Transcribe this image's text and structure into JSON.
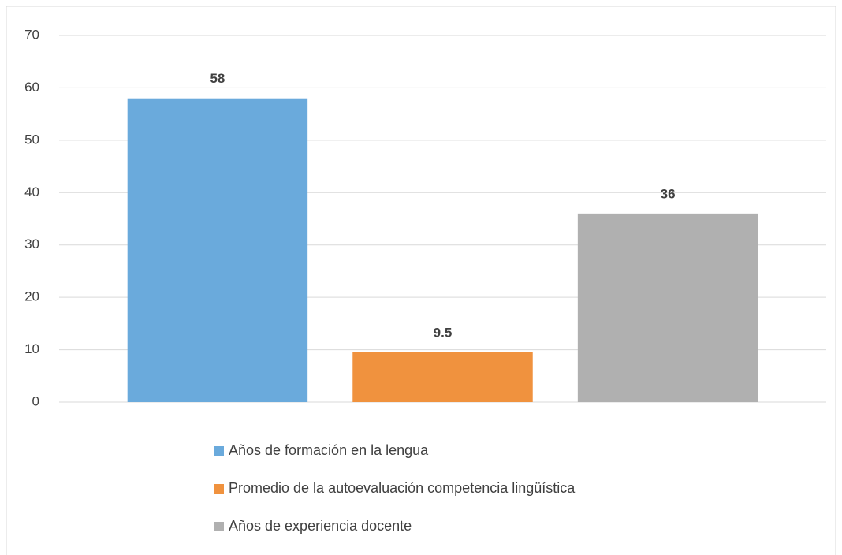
{
  "chart_data": {
    "type": "bar",
    "categories": [
      null
    ],
    "series": [
      {
        "name": "Años de formación en la lengua",
        "color": "#6aaadc",
        "values": [
          58
        ]
      },
      {
        "name": "Promedio de la autoevaluación competencia lingüística",
        "color": "#f0923e",
        "values": [
          9.5
        ]
      },
      {
        "name": "Años de experiencia docente",
        "color": "#b0b0b0",
        "values": [
          36
        ]
      }
    ],
    "ylim": [
      0,
      70
    ],
    "yticks": [
      0,
      10,
      20,
      30,
      40,
      50,
      60,
      70
    ],
    "grid": true,
    "legend": "bottom"
  }
}
